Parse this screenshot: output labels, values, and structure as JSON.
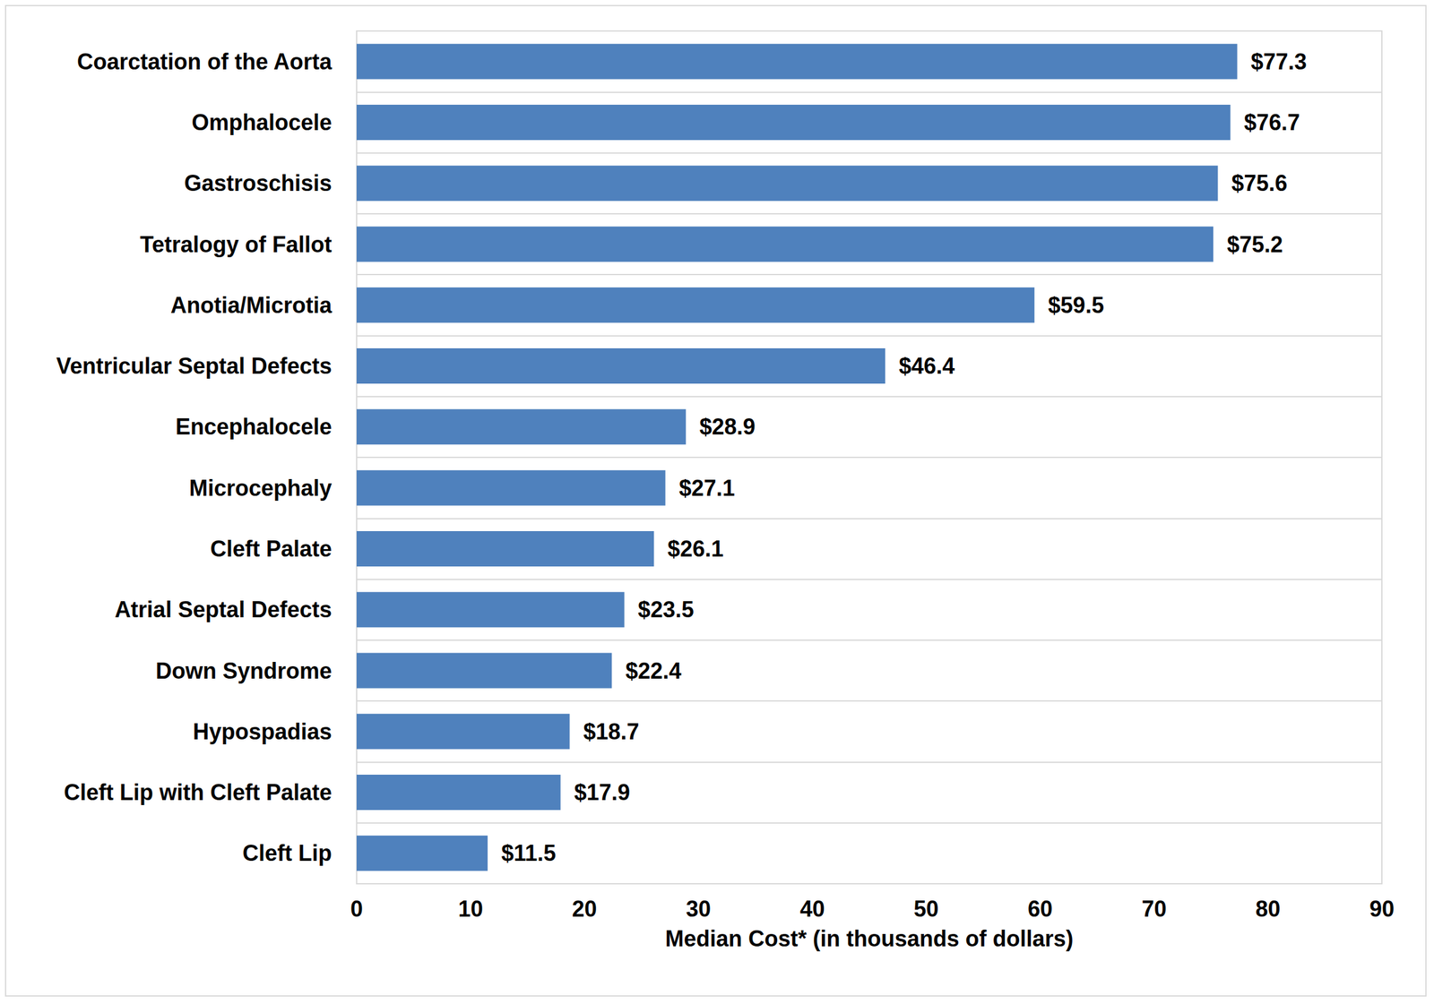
{
  "chart_data": {
    "type": "bar",
    "orientation": "horizontal",
    "categories": [
      "Coarctation of the Aorta",
      "Omphalocele",
      "Gastroschisis",
      "Tetralogy of Fallot",
      "Anotia/Microtia",
      "Ventricular Septal Defects",
      "Encephalocele",
      "Microcephaly",
      "Cleft Palate",
      "Atrial Septal Defects",
      "Down Syndrome",
      "Hypospadias",
      "Cleft Lip with Cleft Palate",
      "Cleft Lip"
    ],
    "values": [
      77.3,
      76.7,
      75.6,
      75.2,
      59.5,
      46.4,
      28.9,
      27.1,
      26.1,
      23.5,
      22.4,
      18.7,
      17.9,
      11.5
    ],
    "value_labels": [
      "$77.3",
      "$76.7",
      "$75.6",
      "$75.2",
      "$59.5",
      "$46.4",
      "$28.9",
      "$27.1",
      "$26.1",
      "$23.5",
      "$22.4",
      "$18.7",
      "$17.9",
      "$11.5"
    ],
    "data_labels": true,
    "color": "#4f81bd",
    "x_label": "Median Cost* (in thousands of dollars)",
    "xlim": [
      0,
      90
    ],
    "xticks": [
      0,
      10,
      20,
      30,
      40,
      50,
      60,
      70,
      80,
      90
    ],
    "grid": true
  }
}
